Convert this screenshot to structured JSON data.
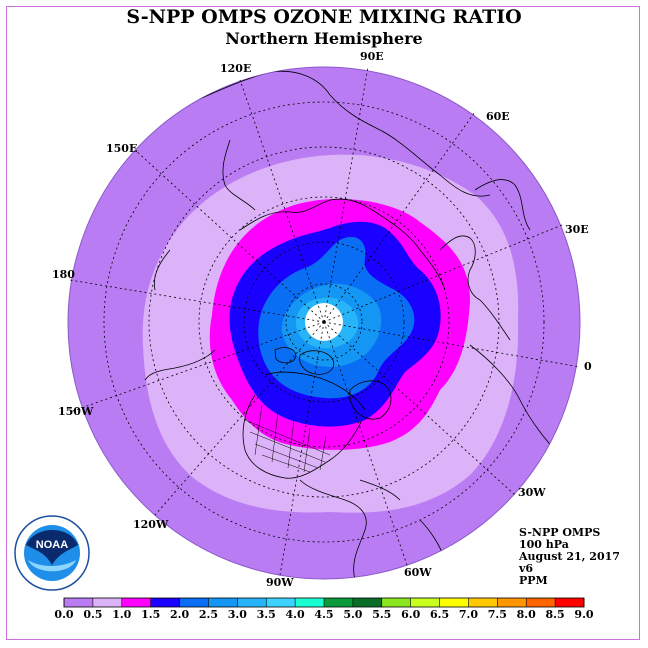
{
  "title": "S-NPP OMPS OZONE MIXING RATIO",
  "subtitle": "Northern Hemisphere",
  "longitude_labels": [
    "120E",
    "90E",
    "60E",
    "150E",
    "30E",
    "180",
    "0",
    "150W",
    "30W",
    "120W",
    "60W",
    "90W"
  ],
  "info": {
    "instrument": "S-NPP OMPS",
    "level": "100 hPa",
    "date": "August 21, 2017",
    "version": "v6",
    "units": "PPM"
  },
  "colorbar": {
    "ticks": [
      "0.0",
      "0.5",
      "1.0",
      "1.5",
      "2.0",
      "2.5",
      "3.0",
      "3.5",
      "4.0",
      "4.5",
      "5.0",
      "5.5",
      "6.0",
      "6.5",
      "7.0",
      "7.5",
      "8.0",
      "8.5",
      "9.0"
    ],
    "colors": [
      "#b97cf3",
      "#dcb2f8",
      "#ff00ff",
      "#1a00ff",
      "#0a6ef5",
      "#1496f5",
      "#28b4f8",
      "#3cd2ff",
      "#1affd2",
      "#0a9a3c",
      "#0a6e28",
      "#8ae61e",
      "#c8ff1e",
      "#ffff00",
      "#ffc800",
      "#ff9600",
      "#ff6400",
      "#ff0000",
      "#8b5a32"
    ]
  },
  "logo": {
    "text": "NOAA",
    "ring_text": "NATIONAL OCEANIC AND ATMOSPHERIC ADMINISTRATION · U.S. DEPARTMENT OF COMMERCE"
  }
}
